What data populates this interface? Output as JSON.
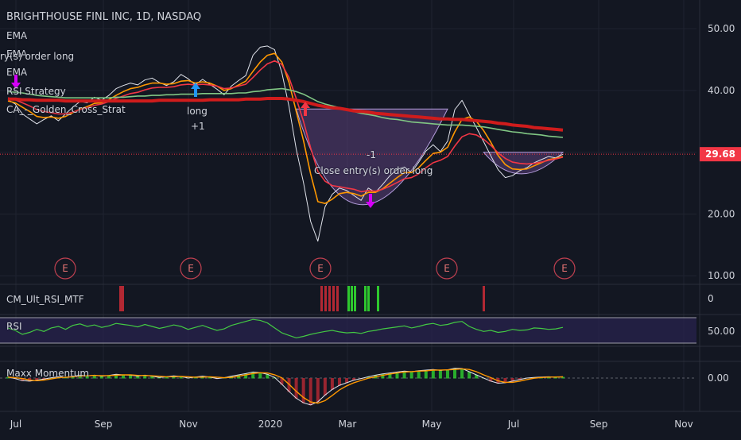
{
  "chart_data": {
    "type": "line",
    "title": "BRIGHTHOUSE FINL INC, 1D, NASDAQ",
    "overlays": [
      "EMA",
      "EMA",
      "EMA",
      "RSI Strategy",
      "CA_-_Golden_Cross_Strat"
    ],
    "last_price": "29.68",
    "price_axis_ticks": [
      "50.00",
      "40.00",
      "30.00",
      "20.00",
      "10.00"
    ],
    "price_ylim": [
      9,
      54
    ],
    "x_ticks": [
      "Jul",
      "Sep",
      "Nov",
      "2020",
      "Mar",
      "May",
      "Jul",
      "Sep",
      "Nov"
    ],
    "earnings_marker": "E",
    "earnings_count": 5,
    "annotations": {
      "top_left_order": "ry(s) order long",
      "long_label": "long",
      "long_qty": "+1",
      "close_qty": "-1",
      "close_label": "Close entry(s) order long"
    },
    "series": [
      {
        "name": "close",
        "color": "#e0e3eb",
        "values": [
          38.5,
          37.8,
          36.2,
          35.4,
          34.6,
          35.3,
          35.9,
          35.1,
          36.2,
          37.3,
          38.2,
          38.0,
          38.9,
          38.4,
          39.2,
          40.3,
          40.8,
          41.2,
          40.9,
          41.7,
          42.0,
          41.3,
          40.8,
          41.4,
          42.6,
          41.9,
          40.9,
          41.8,
          41.0,
          40.2,
          39.3,
          40.7,
          41.6,
          42.4,
          45.7,
          47.0,
          47.2,
          46.6,
          42.9,
          37.4,
          30.5,
          25.1,
          18.8,
          15.6,
          21.2,
          23.2,
          24.2,
          23.8,
          23.0,
          22.2,
          24.2,
          23.5,
          24.8,
          26.2,
          27.2,
          27.6,
          26.7,
          28.4,
          30.2,
          31.2,
          30.1,
          31.8,
          36.9,
          38.4,
          36.1,
          34.0,
          31.7,
          29.4,
          27.2,
          25.9,
          26.2,
          27.0,
          27.5,
          28.3,
          28.8,
          29.3,
          29.1,
          29.68
        ]
      },
      {
        "name": "ema-fast",
        "color": "#ff9800",
        "values": [
          38.3,
          38.0,
          37.3,
          36.6,
          35.8,
          35.6,
          35.7,
          35.5,
          35.8,
          36.4,
          37.0,
          37.4,
          37.9,
          38.0,
          38.5,
          39.2,
          39.8,
          40.3,
          40.5,
          40.9,
          41.2,
          41.2,
          41.0,
          41.1,
          41.5,
          41.6,
          41.2,
          41.4,
          41.2,
          40.7,
          40.0,
          40.3,
          40.9,
          41.5,
          43.1,
          44.6,
          45.7,
          46.0,
          44.6,
          41.3,
          36.6,
          31.9,
          26.5,
          22.0,
          21.7,
          22.4,
          23.3,
          23.5,
          23.3,
          22.9,
          23.5,
          23.5,
          24.1,
          25.0,
          25.9,
          26.7,
          26.7,
          27.5,
          28.7,
          29.8,
          30.0,
          30.8,
          33.3,
          35.3,
          35.7,
          35.0,
          33.5,
          31.6,
          29.5,
          28.0,
          27.3,
          27.2,
          27.3,
          27.8,
          28.3,
          28.8,
          29.0,
          29.3
        ]
      },
      {
        "name": "ema-mid",
        "color": "#f23645",
        "values": [
          38.8,
          38.5,
          38.0,
          37.5,
          36.9,
          36.6,
          36.4,
          36.2,
          36.2,
          36.5,
          36.9,
          37.2,
          37.6,
          37.8,
          38.2,
          38.7,
          39.1,
          39.5,
          39.7,
          40.1,
          40.4,
          40.5,
          40.5,
          40.6,
          40.9,
          41.0,
          40.9,
          41.0,
          40.9,
          40.7,
          40.3,
          40.4,
          40.7,
          41.0,
          42.1,
          43.3,
          44.3,
          44.8,
          44.2,
          42.1,
          38.7,
          35.0,
          30.7,
          26.9,
          25.3,
          24.6,
          24.4,
          24.2,
          24.0,
          23.6,
          23.8,
          23.7,
          24.0,
          24.5,
          25.1,
          25.7,
          25.9,
          26.5,
          27.5,
          28.3,
          28.7,
          29.3,
          31.0,
          32.5,
          33.0,
          32.8,
          32.1,
          31.1,
          29.9,
          29.0,
          28.4,
          28.2,
          28.1,
          28.2,
          28.4,
          28.7,
          28.9,
          29.2
        ]
      },
      {
        "name": "ema-slow",
        "color": "#81c784",
        "values": [
          39.8,
          39.7,
          39.6,
          39.4,
          39.2,
          39.1,
          39.0,
          38.9,
          38.8,
          38.8,
          38.8,
          38.8,
          38.8,
          38.8,
          38.8,
          38.9,
          38.9,
          39.0,
          39.1,
          39.1,
          39.2,
          39.2,
          39.3,
          39.3,
          39.4,
          39.4,
          39.4,
          39.5,
          39.5,
          39.5,
          39.5,
          39.5,
          39.6,
          39.6,
          39.8,
          39.9,
          40.1,
          40.2,
          40.3,
          40.1,
          39.8,
          39.4,
          38.8,
          38.2,
          37.8,
          37.5,
          37.2,
          36.9,
          36.6,
          36.3,
          36.1,
          35.9,
          35.6,
          35.4,
          35.3,
          35.1,
          34.9,
          34.8,
          34.7,
          34.6,
          34.5,
          34.4,
          34.4,
          34.4,
          34.3,
          34.2,
          34.1,
          33.9,
          33.7,
          33.5,
          33.3,
          33.2,
          33.0,
          32.9,
          32.8,
          32.6,
          32.5,
          32.4
        ]
      },
      {
        "name": "ema-200",
        "color": "#d01c1c",
        "values": [
          38.6,
          38.6,
          38.5,
          38.5,
          38.4,
          38.4,
          38.4,
          38.4,
          38.3,
          38.3,
          38.3,
          38.3,
          38.3,
          38.3,
          38.3,
          38.3,
          38.3,
          38.3,
          38.3,
          38.3,
          38.3,
          38.4,
          38.4,
          38.4,
          38.4,
          38.4,
          38.4,
          38.4,
          38.5,
          38.5,
          38.5,
          38.5,
          38.5,
          38.6,
          38.6,
          38.6,
          38.7,
          38.7,
          38.7,
          38.6,
          38.4,
          38.2,
          37.9,
          37.6,
          37.4,
          37.2,
          37.1,
          36.9,
          36.7,
          36.6,
          36.5,
          36.3,
          36.2,
          36.1,
          36.0,
          35.9,
          35.8,
          35.7,
          35.6,
          35.5,
          35.4,
          35.4,
          35.3,
          35.3,
          35.2,
          35.1,
          35.0,
          34.9,
          34.7,
          34.6,
          34.4,
          34.3,
          34.2,
          34.0,
          33.9,
          33.8,
          33.7,
          33.6
        ]
      }
    ],
    "panes": [
      {
        "name": "CM_Ult_RSI_MTF",
        "axis_ticks": [
          "0"
        ]
      },
      {
        "name": "RSI",
        "axis_ticks": [
          "50.00"
        ],
        "ylim": [
          15,
          85
        ],
        "values": [
          55,
          50,
          42,
          46,
          52,
          48,
          55,
          58,
          52,
          60,
          63,
          58,
          61,
          56,
          59,
          64,
          62,
          60,
          57,
          62,
          58,
          54,
          57,
          61,
          58,
          52,
          56,
          60,
          55,
          50,
          53,
          60,
          64,
          68,
          72,
          70,
          65,
          55,
          45,
          40,
          35,
          38,
          42,
          45,
          48,
          50,
          47,
          45,
          46,
          44,
          48,
          50,
          53,
          55,
          57,
          59,
          55,
          58,
          62,
          64,
          60,
          62,
          66,
          68,
          58,
          52,
          48,
          50,
          46,
          48,
          52,
          50,
          51,
          55,
          54,
          52,
          53,
          56
        ]
      },
      {
        "name": "Maxx Momentum",
        "axis_ticks": [
          "0.00"
        ],
        "ylim": [
          -6,
          5
        ],
        "values": [
          0.3,
          -0.1,
          -0.5,
          -0.6,
          -0.4,
          -0.2,
          0.1,
          0.4,
          0.2,
          0.6,
          0.9,
          0.7,
          0.9,
          0.6,
          0.8,
          1.2,
          1.0,
          0.9,
          0.6,
          0.9,
          0.6,
          0.2,
          0.4,
          0.7,
          0.5,
          0.0,
          0.3,
          0.6,
          0.3,
          -0.1,
          0.1,
          0.6,
          1.0,
          1.4,
          1.9,
          1.7,
          1.2,
          0.2,
          -1.2,
          -2.6,
          -3.9,
          -4.8,
          -5.2,
          -4.6,
          -3.3,
          -2.2,
          -1.4,
          -0.9,
          -0.4,
          -0.1,
          0.4,
          0.9,
          1.3,
          1.6,
          1.9,
          2.2,
          2.0,
          2.3,
          2.5,
          2.7,
          2.4,
          2.6,
          3.1,
          3.0,
          2.0,
          1.0,
          0.0,
          -0.6,
          -1.0,
          -0.9,
          -0.6,
          -0.3,
          0.0,
          0.2,
          0.3,
          0.4,
          0.3,
          0.4
        ]
      }
    ]
  },
  "colors": {
    "bg": "#131722",
    "grid": "#1f2330",
    "text": "#d1d4dc",
    "price_badge": "#f23645",
    "rsi_band": "#2a2450",
    "cup_fill": "#5b3f7a",
    "cup_stroke": "#b39ddb",
    "ind_red": "#b22833",
    "ind_green": "#2ec72e",
    "buy_arrow": "#2196f3",
    "sell_arrow": "#f23645"
  }
}
